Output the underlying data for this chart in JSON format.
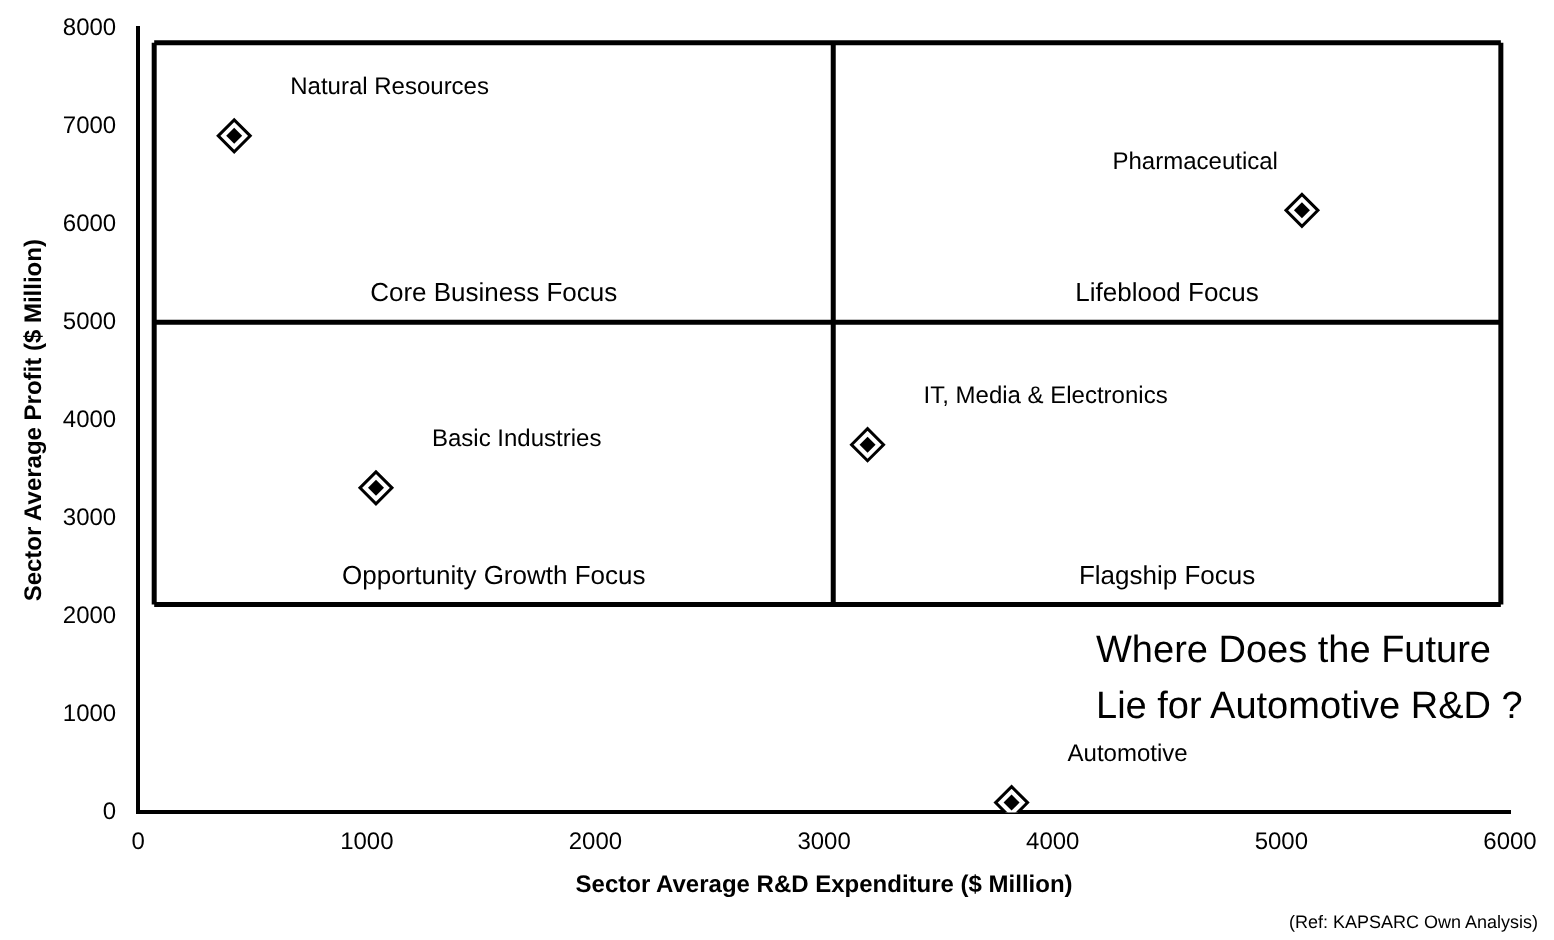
{
  "chart_data": {
    "type": "scatter",
    "title": "Where Does the Future Lie for Automotive R&D ?",
    "xlabel": "Sector Average R&D Expenditure ($ Million)",
    "ylabel": "Sector Average Profit ($ Million)",
    "series": [
      {
        "name": "Natural Resources",
        "color": "#000000",
        "x": [
          420
        ],
        "values": [
          6900
        ]
      },
      {
        "name": "Basic Industries",
        "color": "#000000",
        "x": [
          1040
        ],
        "values": [
          3310
        ]
      },
      {
        "name": "IT, Media & Electronics",
        "color": "#000000",
        "x": [
          3190
        ],
        "values": [
          3750
        ]
      },
      {
        "name": "Pharmaceutical",
        "color": "#000000",
        "x": [
          5090
        ],
        "values": [
          6140
        ]
      },
      {
        "name": "Automotive",
        "color": "#000000",
        "x": [
          3820
        ],
        "values": [
          100
        ]
      }
    ],
    "xlim": [
      0,
      6000
    ],
    "xticks": [
      0,
      1000,
      2000,
      3000,
      4000,
      5000,
      6000
    ],
    "ylim": [
      0,
      8000
    ],
    "yticks": [
      0,
      1000,
      2000,
      3000,
      4000,
      5000,
      6000,
      7000,
      8000
    ],
    "ref_lines": [
      {
        "axis": "x",
        "value": 70,
        "color": "#000000"
      },
      {
        "axis": "x",
        "value": 3040,
        "color": "#000000"
      },
      {
        "axis": "x",
        "value": 5960,
        "color": "#000000"
      },
      {
        "axis": "y",
        "value": 2120,
        "color": "#000000"
      },
      {
        "axis": "y",
        "value": 5000,
        "color": "#000000"
      },
      {
        "axis": "y",
        "value": 7850,
        "color": "#000000"
      }
    ],
    "annotations": [
      "Core Business Focus",
      "Lifeblood Focus",
      "Opportunity Growth Focus",
      "Flagship Focus",
      "(Ref: KAPSARC Own Analysis)"
    ],
    "marker": "diamond",
    "legend": false,
    "grid": false
  }
}
